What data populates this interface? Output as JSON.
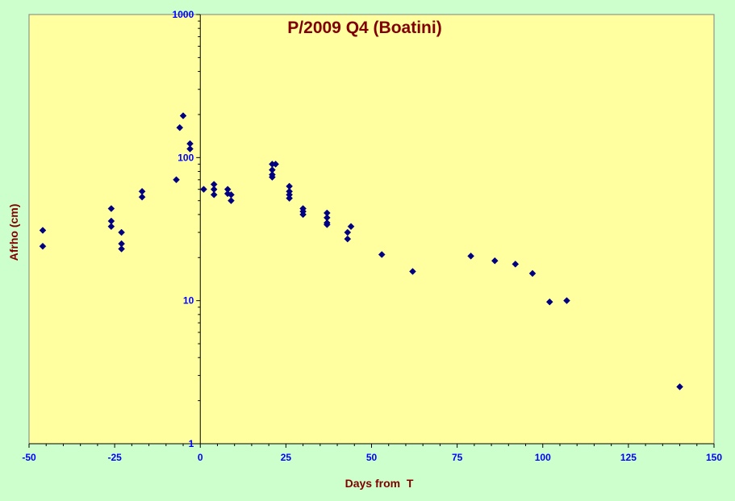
{
  "chart_data": {
    "type": "scatter",
    "title": "P/2009 Q4 (Boatini)",
    "xlabel": "Days from  T",
    "ylabel": "Afrho (cm)",
    "xlim": [
      -50,
      150
    ],
    "ylim": [
      1,
      1000
    ],
    "yscale": "log",
    "xticks": [
      "-50",
      "-25",
      "0",
      "25",
      "50",
      "75",
      "100",
      "125",
      "150"
    ],
    "yticks": [
      "1",
      "10",
      "100",
      "1000"
    ],
    "grid": false,
    "legend": "none",
    "colors": {
      "plot_background": "#ffffa0",
      "frame_background": "#ccffcc",
      "marker": "#000080",
      "title": "#800000",
      "ticks": "#0000ff"
    },
    "series": [
      {
        "x": [
          -46,
          -46,
          -26,
          -26,
          -26,
          -23,
          -23,
          -23,
          -17,
          -17,
          -7,
          -6,
          -5,
          -3,
          -3,
          1,
          4,
          4,
          4,
          8,
          8,
          9,
          9,
          21,
          21,
          21,
          21,
          22,
          26,
          26,
          26,
          26,
          30,
          30,
          30,
          37,
          37,
          37,
          37,
          43,
          43,
          44,
          53,
          62,
          79,
          86,
          92,
          97,
          102,
          107,
          140
        ],
        "y": [
          31,
          24,
          44,
          36,
          33,
          30,
          25,
          23,
          58,
          53,
          70,
          162,
          196,
          125,
          115,
          60,
          65,
          60,
          55,
          60,
          56,
          55,
          50,
          90,
          82,
          76,
          73,
          90,
          63,
          58,
          55,
          52,
          44,
          42,
          40,
          41,
          38,
          35,
          34,
          30,
          27,
          33,
          21,
          16,
          20.5,
          19,
          18,
          15.5,
          9.8,
          10,
          2.5
        ]
      }
    ]
  }
}
